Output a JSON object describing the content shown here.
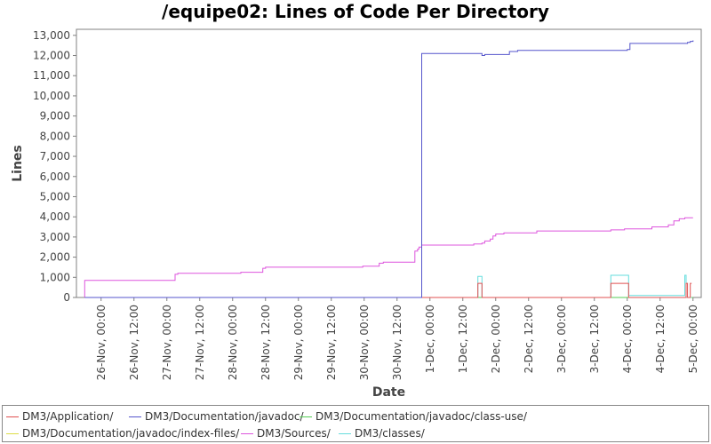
{
  "chart_data": {
    "type": "line",
    "title": "/equipe02: Lines of Code Per Directory",
    "xlabel": "Date",
    "ylabel": "Lines",
    "ylim": [
      0,
      13300
    ],
    "xlim": [
      "2005-11-25T15:00",
      "2005-12-05T03:00"
    ],
    "y_ticks": [
      0,
      1000,
      2000,
      3000,
      4000,
      5000,
      6000,
      7000,
      8000,
      9000,
      10000,
      11000,
      12000,
      13000
    ],
    "y_tick_labels": [
      "0",
      "1,000",
      "2,000",
      "3,000",
      "4,000",
      "5,000",
      "6,000",
      "7,000",
      "8,000",
      "9,000",
      "10,000",
      "11,000",
      "12,000",
      "13,000"
    ],
    "x_ticks": [
      "2005-11-26T00:00",
      "2005-11-26T12:00",
      "2005-11-27T00:00",
      "2005-11-27T12:00",
      "2005-11-28T00:00",
      "2005-11-28T12:00",
      "2005-11-29T00:00",
      "2005-11-29T12:00",
      "2005-11-30T00:00",
      "2005-11-30T12:00",
      "2005-12-01T00:00",
      "2005-12-01T12:00",
      "2005-12-02T00:00",
      "2005-12-02T12:00",
      "2005-12-03T00:00",
      "2005-12-03T12:00",
      "2005-12-04T00:00",
      "2005-12-04T12:00",
      "2005-12-05T00:00"
    ],
    "x_tick_labels": [
      "26-Nov, 00:00",
      "26-Nov, 12:00",
      "27-Nov, 00:00",
      "27-Nov, 12:00",
      "28-Nov, 00:00",
      "28-Nov, 12:00",
      "29-Nov, 00:00",
      "29-Nov, 12:00",
      "30-Nov, 00:00",
      "30-Nov, 12:00",
      "1-Dec, 00:00",
      "1-Dec, 12:00",
      "2-Dec, 00:00",
      "2-Dec, 12:00",
      "3-Dec, 00:00",
      "3-Dec, 12:00",
      "4-Dec, 00:00",
      "4-Dec, 12:00",
      "5-Dec, 00:00"
    ],
    "grid": false,
    "legend_position": "bottom",
    "series": [
      {
        "name": "DM3/Application/",
        "color": "#e05050",
        "step": true,
        "points": [
          [
            "2005-11-25T18:00",
            0
          ],
          [
            "2005-12-01T17:30",
            0
          ],
          [
            "2005-12-01T17:30",
            700
          ],
          [
            "2005-12-01T19:00",
            700
          ],
          [
            "2005-12-01T19:00",
            0
          ],
          [
            "2005-12-03T18:00",
            0
          ],
          [
            "2005-12-03T18:00",
            700
          ],
          [
            "2005-12-04T00:30",
            700
          ],
          [
            "2005-12-04T00:30",
            0
          ],
          [
            "2005-12-04T21:30",
            0
          ],
          [
            "2005-12-04T21:30",
            700
          ],
          [
            "2005-12-04T22:00",
            0
          ],
          [
            "2005-12-04T23:00",
            0
          ],
          [
            "2005-12-04T23:00",
            700
          ],
          [
            "2005-12-04T23:30",
            700
          ]
        ]
      },
      {
        "name": "DM3/Documentation/javadoc/",
        "color": "#5555cc",
        "step": true,
        "points": [
          [
            "2005-11-25T18:00",
            0
          ],
          [
            "2005-11-30T21:00",
            0
          ],
          [
            "2005-11-30T21:00",
            12100
          ],
          [
            "2005-12-01T19:00",
            12100
          ],
          [
            "2005-12-01T19:00",
            12000
          ],
          [
            "2005-12-01T20:00",
            12050
          ],
          [
            "2005-12-02T05:00",
            12050
          ],
          [
            "2005-12-02T05:00",
            12200
          ],
          [
            "2005-12-02T08:00",
            12250
          ],
          [
            "2005-12-04T00:00",
            12250
          ],
          [
            "2005-12-04T00:00",
            12300
          ],
          [
            "2005-12-04T01:00",
            12600
          ],
          [
            "2005-12-04T21:00",
            12600
          ],
          [
            "2005-12-04T22:00",
            12650
          ],
          [
            "2005-12-04T23:00",
            12700
          ],
          [
            "2005-12-05T00:00",
            12750
          ]
        ]
      },
      {
        "name": "DM3/Documentation/javadoc/class-use/",
        "color": "#55cc55",
        "step": true,
        "points": [
          [
            "2005-11-25T18:00",
            0
          ],
          [
            "2005-12-05T00:00",
            0
          ]
        ]
      },
      {
        "name": "DM3/Documentation/javadoc/index-files/",
        "color": "#dddd44",
        "step": true,
        "points": [
          [
            "2005-11-25T18:00",
            0
          ],
          [
            "2005-12-05T00:00",
            0
          ]
        ]
      },
      {
        "name": "DM3/Sources/",
        "color": "#dd55dd",
        "step": true,
        "points": [
          [
            "2005-11-25T18:00",
            0
          ],
          [
            "2005-11-25T18:00",
            850
          ],
          [
            "2005-11-27T03:00",
            850
          ],
          [
            "2005-11-27T03:00",
            1150
          ],
          [
            "2005-11-27T04:00",
            1200
          ],
          [
            "2005-11-28T03:00",
            1200
          ],
          [
            "2005-11-28T03:00",
            1250
          ],
          [
            "2005-11-28T11:00",
            1250
          ],
          [
            "2005-11-28T11:00",
            1450
          ],
          [
            "2005-11-28T12:00",
            1500
          ],
          [
            "2005-11-29T23:30",
            1500
          ],
          [
            "2005-11-29T23:30",
            1550
          ],
          [
            "2005-11-30T05:30",
            1550
          ],
          [
            "2005-11-30T05:30",
            1700
          ],
          [
            "2005-11-30T07:00",
            1750
          ],
          [
            "2005-11-30T18:30",
            1750
          ],
          [
            "2005-11-30T18:30",
            2300
          ],
          [
            "2005-11-30T19:30",
            2400
          ],
          [
            "2005-11-30T20:00",
            2500
          ],
          [
            "2005-11-30T21:00",
            2600
          ],
          [
            "2005-12-01T15:30",
            2600
          ],
          [
            "2005-12-01T16:00",
            2650
          ],
          [
            "2005-12-01T19:00",
            2700
          ],
          [
            "2005-12-01T20:00",
            2800
          ],
          [
            "2005-12-01T22:00",
            2900
          ],
          [
            "2005-12-01T23:00",
            3050
          ],
          [
            "2005-12-02T00:00",
            3150
          ],
          [
            "2005-12-02T03:00",
            3200
          ],
          [
            "2005-12-02T15:00",
            3200
          ],
          [
            "2005-12-02T15:00",
            3300
          ],
          [
            "2005-12-03T18:00",
            3300
          ],
          [
            "2005-12-03T18:00",
            3350
          ],
          [
            "2005-12-03T23:00",
            3350
          ],
          [
            "2005-12-03T23:00",
            3400
          ],
          [
            "2005-12-04T09:00",
            3400
          ],
          [
            "2005-12-04T09:00",
            3500
          ],
          [
            "2005-12-04T15:00",
            3600
          ],
          [
            "2005-12-04T17:00",
            3800
          ],
          [
            "2005-12-04T19:00",
            3900
          ],
          [
            "2005-12-04T21:00",
            3950
          ],
          [
            "2005-12-05T00:00",
            3950
          ]
        ]
      },
      {
        "name": "DM3/classes/",
        "color": "#66dddd",
        "step": true,
        "points": [
          [
            "2005-11-25T18:00",
            0
          ],
          [
            "2005-12-01T17:30",
            0
          ],
          [
            "2005-12-01T17:30",
            1050
          ],
          [
            "2005-12-01T19:00",
            1050
          ],
          [
            "2005-12-01T19:00",
            0
          ],
          [
            "2005-12-03T18:00",
            0
          ],
          [
            "2005-12-03T18:00",
            1100
          ],
          [
            "2005-12-04T00:30",
            1100
          ],
          [
            "2005-12-04T00:30",
            100
          ],
          [
            "2005-12-04T21:00",
            100
          ],
          [
            "2005-12-04T21:00",
            1100
          ],
          [
            "2005-12-04T21:30",
            1100
          ],
          [
            "2005-12-04T21:30",
            0
          ],
          [
            "2005-12-04T23:30",
            0
          ]
        ]
      }
    ]
  }
}
